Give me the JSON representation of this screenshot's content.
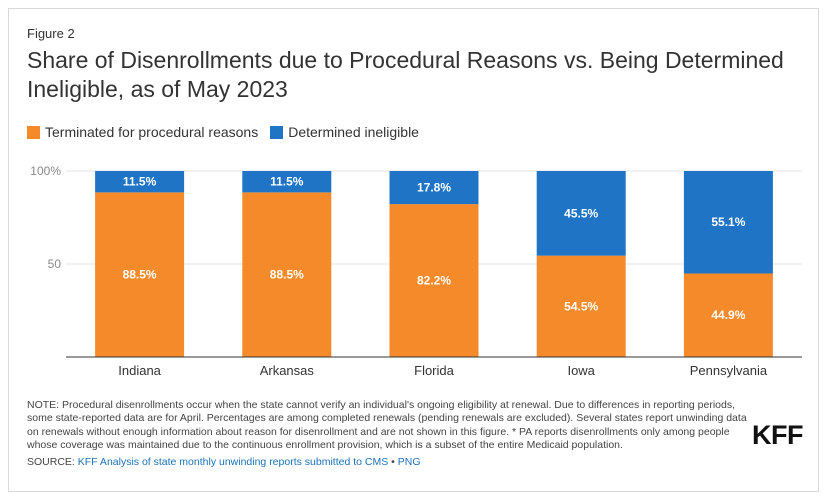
{
  "figure_label": "Figure 2",
  "title": "Share of Disenrollments due to Procedural Reasons vs. Being Determined Ineligible, as of May 2023",
  "note": "NOTE: Procedural disenrollments occur when the state cannot verify an individual's ongoing eligibility at renewal. Due to differences in reporting periods, some state-reported data are for April. Percentages are among completed renewals (pending renewals are excluded). Several states report unwinding data on renewals without enough information about reason for disenrollment and are not shown in this figure. * PA reports disenrollments only among people whose coverage was maintained due to the continuous enrollment provision, which is a subset of the entire Medicaid population.",
  "source": {
    "prefix": "SOURCE: ",
    "link_text": "KFF Analysis of state monthly unwinding reports submitted to CMS",
    "separator": " • ",
    "png_text": "PNG"
  },
  "logo_text": "KFF",
  "colors": {
    "procedural": "#f58a2b",
    "ineligible": "#1f74c6",
    "grid": "#e3e3e3",
    "axis": "#333333",
    "tick": "#888888"
  },
  "chart_data": {
    "type": "bar",
    "stacked": true,
    "categories": [
      "Indiana",
      "Arkansas",
      "Florida",
      "Iowa",
      "Pennsylvania"
    ],
    "series": [
      {
        "name": "Terminated for procedural reasons",
        "values": [
          88.5,
          88.5,
          82.2,
          54.5,
          44.9
        ],
        "labels": [
          "88.5%",
          "88.5%",
          "82.2%",
          "54.5%",
          "44.9%"
        ]
      },
      {
        "name": "Determined ineligible",
        "values": [
          11.5,
          11.5,
          17.8,
          45.5,
          55.1
        ],
        "labels": [
          "11.5%",
          "11.5%",
          "17.8%",
          "45.5%",
          "55.1%"
        ]
      }
    ],
    "yticks": [
      {
        "value": 100,
        "label": "100%"
      },
      {
        "value": 50,
        "label": "50"
      }
    ],
    "ylim": [
      0,
      100
    ],
    "grid": true,
    "legend_position": "top-left"
  }
}
